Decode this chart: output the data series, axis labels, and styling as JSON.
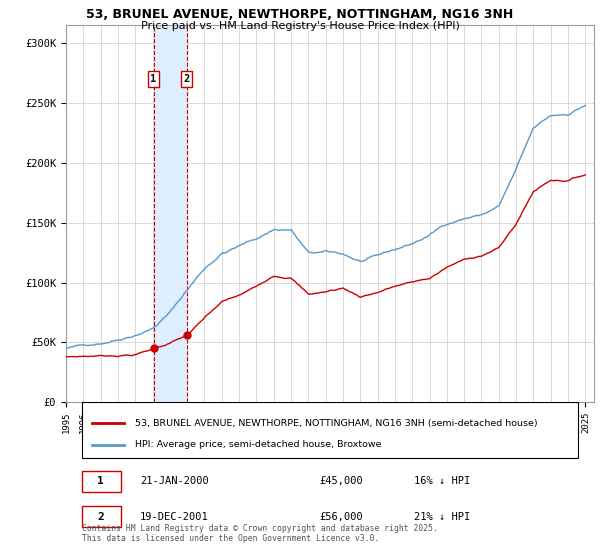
{
  "title1": "53, BRUNEL AVENUE, NEWTHORPE, NOTTINGHAM, NG16 3NH",
  "title2": "Price paid vs. HM Land Registry's House Price Index (HPI)",
  "ylabel_ticks": [
    "£0",
    "£50K",
    "£100K",
    "£150K",
    "£200K",
    "£250K",
    "£300K"
  ],
  "ytick_values": [
    0,
    50000,
    100000,
    150000,
    200000,
    250000,
    300000
  ],
  "ylim": [
    0,
    315000
  ],
  "sale1_date_num": 2000.06,
  "sale2_date_num": 2001.97,
  "sale1_price": 45000,
  "sale2_price": 56000,
  "legend_red": "53, BRUNEL AVENUE, NEWTHORPE, NOTTINGHAM, NG16 3NH (semi-detached house)",
  "legend_blue": "HPI: Average price, semi-detached house, Broxtowe",
  "footer": "Contains HM Land Registry data © Crown copyright and database right 2025.\nThis data is licensed under the Open Government Licence v3.0.",
  "red_color": "#cc0000",
  "blue_color": "#5599cc",
  "shaded_color": "#ddeeff",
  "vline_color": "#cc0000",
  "background_color": "#ffffff",
  "grid_color": "#cccccc"
}
